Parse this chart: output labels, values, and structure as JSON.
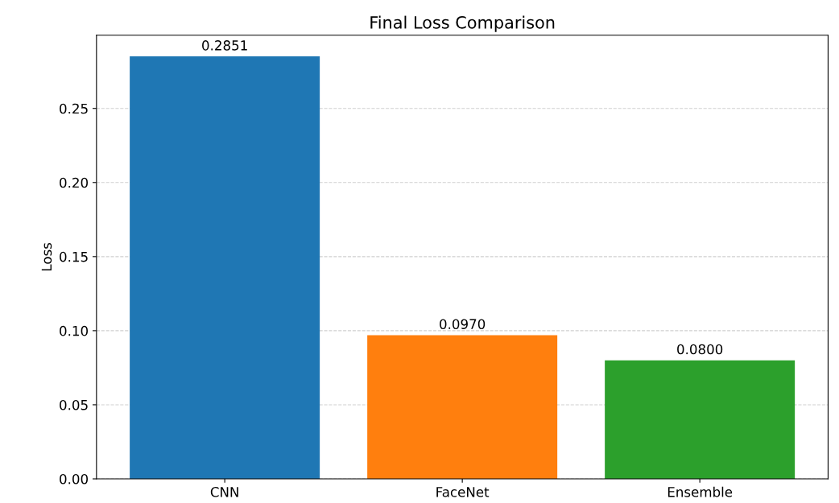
{
  "chart_data": {
    "type": "bar",
    "title": "Final Loss Comparison",
    "ylabel": "Loss",
    "categories": [
      "CNN",
      "FaceNet",
      "Ensemble"
    ],
    "values": [
      0.2851,
      0.097,
      0.08
    ],
    "colors": [
      "#1f77b4",
      "#ff7f0e",
      "#2ca02c"
    ],
    "value_labels": [
      "0.2851",
      "0.0970",
      "0.0800"
    ],
    "ylim": [
      0,
      0.2994
    ],
    "yticks": [
      "0.00",
      "0.05",
      "0.10",
      "0.15",
      "0.20",
      "0.25"
    ],
    "grid": "y"
  }
}
